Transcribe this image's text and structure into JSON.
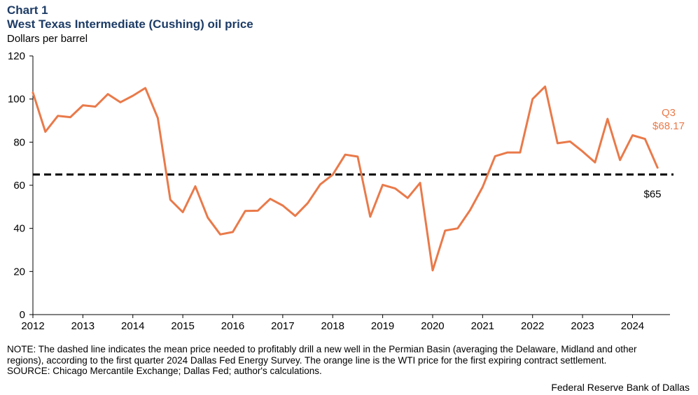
{
  "header": {
    "chart_number": "Chart 1",
    "title": "West Texas Intermediate (Cushing) oil price",
    "units_label": "Dollars per barrel"
  },
  "colors": {
    "title": "#1d3c66",
    "series": "#e97a4a",
    "reference": "#000000",
    "axis": "#000000"
  },
  "chart_data": {
    "type": "line",
    "title": "West Texas Intermediate (Cushing) oil price",
    "ylabel": "Dollars per barrel",
    "xlabel": "",
    "ylim": [
      0,
      120
    ],
    "xlim": [
      2012,
      2024.75
    ],
    "y_ticks": [
      0,
      20,
      40,
      60,
      80,
      100,
      120
    ],
    "x_ticks": [
      2012,
      2013,
      2014,
      2015,
      2016,
      2017,
      2018,
      2019,
      2020,
      2021,
      2022,
      2023,
      2024
    ],
    "grid": false,
    "series": [
      {
        "name": "WTI price",
        "x": [
          2012,
          2012.25,
          2012.5,
          2012.75,
          2013,
          2013.25,
          2013.5,
          2013.75,
          2014,
          2014.25,
          2014.5,
          2014.75,
          2015,
          2015.25,
          2015.5,
          2015.75,
          2016,
          2016.25,
          2016.5,
          2016.75,
          2017,
          2017.25,
          2017.5,
          2017.75,
          2018,
          2018.25,
          2018.5,
          2018.75,
          2019,
          2019.25,
          2019.5,
          2019.75,
          2020,
          2020.25,
          2020.5,
          2020.75,
          2021,
          2021.25,
          2021.5,
          2021.75,
          2022,
          2022.25,
          2022.5,
          2022.75,
          2023,
          2023.25,
          2023.5,
          2023.75,
          2024,
          2024.25,
          2024.5
        ],
        "values": [
          103.0,
          84.8,
          92.2,
          91.6,
          97.1,
          96.5,
          102.3,
          98.5,
          101.5,
          105.1,
          91.2,
          53.3,
          47.5,
          59.5,
          45.0,
          37.2,
          38.3,
          48.1,
          48.2,
          53.7,
          50.6,
          45.8,
          51.7,
          60.4,
          64.9,
          74.2,
          73.3,
          45.4,
          60.2,
          58.5,
          54.1,
          61.1,
          20.5,
          39.0,
          40.0,
          48.5,
          59.2,
          73.5,
          75.2,
          75.2,
          100.0,
          105.8,
          79.5,
          80.3,
          75.7,
          70.6,
          90.8,
          71.7,
          83.2,
          81.5,
          68.17
        ]
      }
    ],
    "reference_line": {
      "value": 65,
      "label": "$65",
      "style": "dashed"
    },
    "annotation": {
      "line1": "Q3",
      "line2": "$68.17"
    }
  },
  "footer": {
    "note_line1": "NOTE: The dashed line indicates the mean price needed to profitably drill a new well in the Permian Basin (averaging the Delaware, Midland and other",
    "note_line2": "regions), according to the first quarter 2024 Dallas Fed Energy Survey. The orange line is the WTI price for the first expiring contract settlement.",
    "source": "SOURCE: Chicago Mercantile Exchange; Dallas Fed; author's calculations.",
    "credit": "Federal Reserve Bank of Dallas"
  }
}
